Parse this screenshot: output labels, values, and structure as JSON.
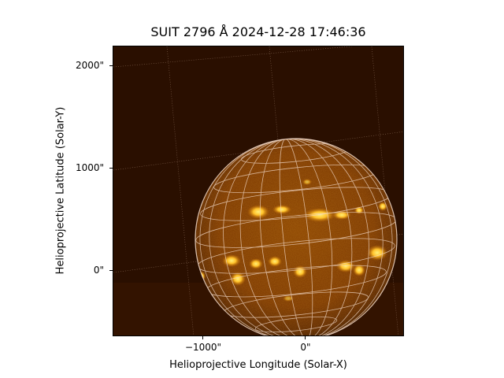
{
  "figure": {
    "title": "SUIT 2796 Å 2024-12-28 17:46:36",
    "x_axis_label": "Helioprojective Longitude (Solar-X)",
    "y_axis_label": "Helioprojective Latitude (Solar-Y)",
    "x_ticks": [
      "−1000\"",
      "0\""
    ],
    "y_ticks": [
      "2000\"",
      "1000\"",
      "0\""
    ]
  },
  "colors": {
    "background_sky": "#2a0f00",
    "disk_base": "#7a3600",
    "plage_bright": "#ffd23c",
    "grid_line": "#f2d9c8",
    "axis": "#000000"
  }
}
